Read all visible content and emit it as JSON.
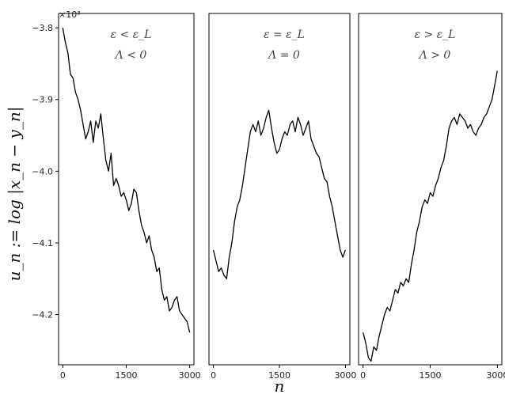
{
  "chart_data": {
    "type": "line",
    "ylabel": "u_n := log |x_n − y_n|",
    "xlabel": "n",
    "y_multiplier": "×10³",
    "ylim": [
      -4.27,
      -3.78
    ],
    "yticks": [
      -3.8,
      -3.9,
      -4.0,
      -4.1,
      -4.2
    ],
    "ytick_labels": [
      "−3.8",
      "−3.9",
      "−4.0",
      "−4.1",
      "−4.2"
    ],
    "xlim": [
      -100,
      3100
    ],
    "xticks": [
      0,
      1500,
      3000
    ],
    "xtick_labels": [
      "0",
      "1500",
      "3000"
    ],
    "panels": [
      {
        "annotation_line1": "ε < ε_L",
        "annotation_line2": "Λ < 0",
        "x": [
          0,
          60,
          120,
          180,
          240,
          300,
          360,
          420,
          480,
          540,
          600,
          660,
          720,
          780,
          840,
          900,
          960,
          1020,
          1080,
          1140,
          1200,
          1260,
          1320,
          1380,
          1440,
          1500,
          1560,
          1620,
          1680,
          1740,
          1800,
          1860,
          1920,
          1980,
          2040,
          2100,
          2160,
          2220,
          2280,
          2340,
          2400,
          2460,
          2520,
          2580,
          2640,
          2700,
          2760,
          2820,
          2880,
          2940,
          3000
        ],
        "y": [
          -3.8,
          -3.82,
          -3.835,
          -3.865,
          -3.87,
          -3.89,
          -3.9,
          -3.915,
          -3.935,
          -3.955,
          -3.945,
          -3.93,
          -3.96,
          -3.93,
          -3.94,
          -3.92,
          -3.955,
          -3.985,
          -4.0,
          -3.975,
          -4.02,
          -4.01,
          -4.02,
          -4.035,
          -4.03,
          -4.04,
          -4.055,
          -4.045,
          -4.025,
          -4.03,
          -4.055,
          -4.075,
          -4.085,
          -4.1,
          -4.09,
          -4.11,
          -4.12,
          -4.14,
          -4.135,
          -4.165,
          -4.18,
          -4.175,
          -4.195,
          -4.19,
          -4.18,
          -4.175,
          -4.195,
          -4.2,
          -4.205,
          -4.21,
          -4.225
        ]
      },
      {
        "annotation_line1": "ε = ε_L",
        "annotation_line2": "Λ = 0",
        "x": [
          0,
          60,
          120,
          180,
          240,
          300,
          360,
          420,
          480,
          540,
          600,
          660,
          720,
          780,
          840,
          900,
          960,
          1020,
          1080,
          1140,
          1200,
          1260,
          1320,
          1380,
          1440,
          1500,
          1560,
          1620,
          1680,
          1740,
          1800,
          1860,
          1920,
          1980,
          2040,
          2100,
          2160,
          2220,
          2280,
          2340,
          2400,
          2460,
          2520,
          2580,
          2640,
          2700,
          2760,
          2820,
          2880,
          2940,
          3000
        ],
        "y": [
          -4.11,
          -4.125,
          -4.14,
          -4.135,
          -4.145,
          -4.15,
          -4.12,
          -4.1,
          -4.07,
          -4.05,
          -4.04,
          -4.02,
          -3.995,
          -3.97,
          -3.945,
          -3.935,
          -3.945,
          -3.93,
          -3.95,
          -3.94,
          -3.925,
          -3.915,
          -3.94,
          -3.96,
          -3.975,
          -3.97,
          -3.955,
          -3.945,
          -3.95,
          -3.935,
          -3.93,
          -3.945,
          -3.925,
          -3.935,
          -3.95,
          -3.94,
          -3.93,
          -3.955,
          -3.965,
          -3.975,
          -3.98,
          -3.995,
          -4.01,
          -4.015,
          -4.035,
          -4.05,
          -4.07,
          -4.09,
          -4.11,
          -4.12,
          -4.11
        ]
      },
      {
        "annotation_line1": "ε > ε_L",
        "annotation_line2": "Λ > 0",
        "x": [
          0,
          60,
          120,
          180,
          240,
          300,
          360,
          420,
          480,
          540,
          600,
          660,
          720,
          780,
          840,
          900,
          960,
          1020,
          1080,
          1140,
          1200,
          1260,
          1320,
          1380,
          1440,
          1500,
          1560,
          1620,
          1680,
          1740,
          1800,
          1860,
          1920,
          1980,
          2040,
          2100,
          2160,
          2220,
          2280,
          2340,
          2400,
          2460,
          2520,
          2580,
          2640,
          2700,
          2760,
          2820,
          2880,
          2940,
          3000
        ],
        "y": [
          -4.225,
          -4.24,
          -4.26,
          -4.265,
          -4.245,
          -4.25,
          -4.23,
          -4.215,
          -4.2,
          -4.19,
          -4.195,
          -4.18,
          -4.165,
          -4.17,
          -4.155,
          -4.16,
          -4.15,
          -4.155,
          -4.13,
          -4.11,
          -4.085,
          -4.07,
          -4.05,
          -4.04,
          -4.045,
          -4.03,
          -4.035,
          -4.02,
          -4.01,
          -3.995,
          -3.985,
          -3.965,
          -3.94,
          -3.93,
          -3.925,
          -3.935,
          -3.92,
          -3.925,
          -3.93,
          -3.94,
          -3.935,
          -3.945,
          -3.95,
          -3.94,
          -3.935,
          -3.925,
          -3.92,
          -3.91,
          -3.9,
          -3.88,
          -3.86
        ]
      }
    ]
  }
}
